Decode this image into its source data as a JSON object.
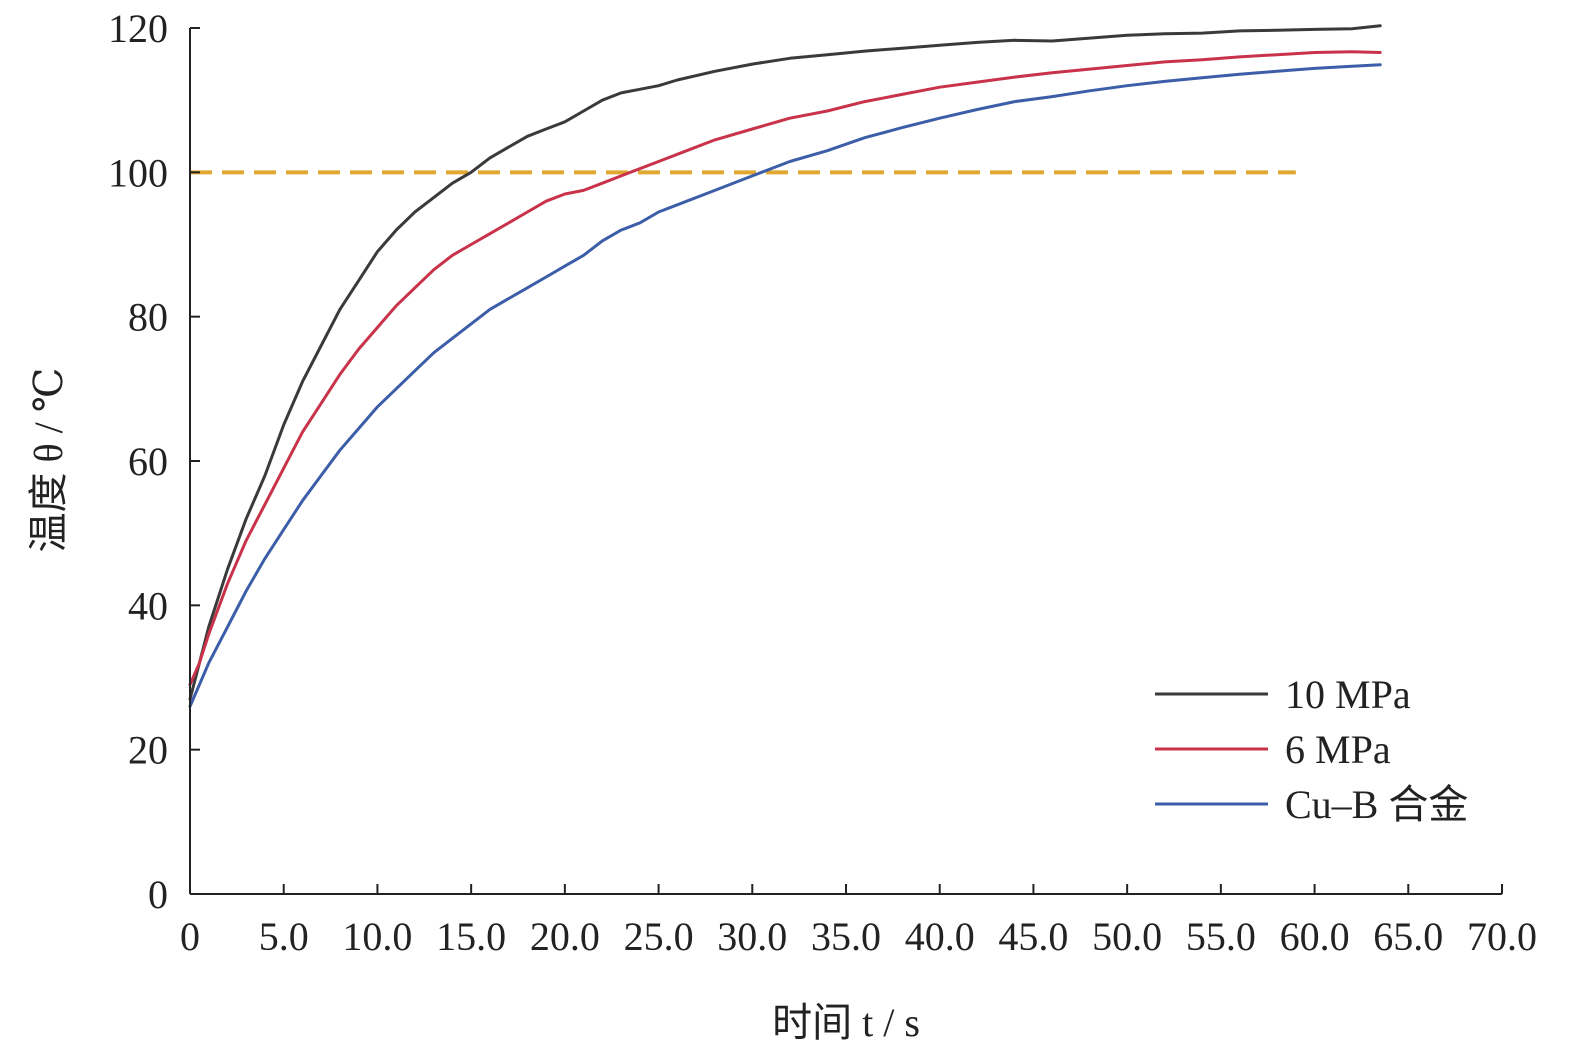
{
  "chart_data": {
    "type": "line",
    "xlabel": "时间 t / s",
    "ylabel": "温度 θ / ℃",
    "xlim": [
      0,
      70
    ],
    "ylim": [
      0,
      120
    ],
    "xticks": [
      0,
      5,
      10,
      15,
      20,
      25,
      30,
      35,
      40,
      45,
      50,
      55,
      60,
      65,
      70
    ],
    "xtick_labels": [
      "0",
      "5.0",
      "10.0",
      "15.0",
      "20.0",
      "25.0",
      "30.0",
      "35.0",
      "40.0",
      "45.0",
      "50.0",
      "55.0",
      "60.0",
      "65.0",
      "70.0"
    ],
    "yticks": [
      0,
      20,
      40,
      60,
      80,
      100,
      120
    ],
    "ytick_labels": [
      "0",
      "20",
      "40",
      "60",
      "80",
      "100",
      "120"
    ],
    "grid": false,
    "legend_position": "bottom-right",
    "series": [
      {
        "name": "10 MPa",
        "color": "#3a3a3a",
        "x": [
          0,
          0.5,
          1,
          2,
          3,
          4,
          5,
          6,
          7,
          8,
          9,
          10,
          11,
          12,
          13,
          14,
          15,
          16,
          17,
          18,
          19,
          20,
          21,
          22,
          23,
          24,
          25,
          26,
          28,
          30,
          32,
          34,
          36,
          38,
          40,
          42,
          44,
          46,
          48,
          50,
          52,
          54,
          56,
          58,
          60,
          62,
          63.5
        ],
        "values": [
          27,
          32,
          37,
          45,
          52,
          58,
          65,
          71,
          76,
          81,
          85,
          89,
          92,
          94.5,
          96.5,
          98.5,
          100,
          102,
          103.5,
          105,
          106,
          107,
          108.5,
          110,
          111,
          111.5,
          112,
          112.8,
          114,
          115,
          115.8,
          116.3,
          116.8,
          117.2,
          117.6,
          118,
          118.3,
          118.2,
          118.6,
          119,
          119.2,
          119.3,
          119.6,
          119.7,
          119.8,
          119.9,
          120.3
        ]
      },
      {
        "name": "6 MPa",
        "color": "#c8334a",
        "x": [
          0,
          0.5,
          1,
          2,
          3,
          4,
          5,
          6,
          7,
          8,
          9,
          10,
          11,
          12,
          13,
          14,
          15,
          16,
          17,
          18,
          19,
          20,
          21,
          22,
          23,
          24,
          25,
          26,
          28,
          30,
          32,
          34,
          36,
          38,
          40,
          42,
          44,
          46,
          48,
          50,
          52,
          54,
          56,
          58,
          60,
          62,
          63.5
        ],
        "values": [
          29,
          32,
          36,
          43,
          49,
          54,
          59,
          64,
          68,
          72,
          75.5,
          78.5,
          81.5,
          84,
          86.5,
          88.5,
          90,
          91.5,
          93,
          94.5,
          96,
          97,
          97.5,
          98.5,
          99.5,
          100.5,
          101.5,
          102.5,
          104.5,
          106,
          107.5,
          108.5,
          109.8,
          110.8,
          111.8,
          112.5,
          113.2,
          113.8,
          114.3,
          114.8,
          115.3,
          115.6,
          116,
          116.3,
          116.6,
          116.7,
          116.6
        ]
      },
      {
        "name": "Cu–B 合金",
        "color": "#3c5ea8",
        "x": [
          0,
          0.5,
          1,
          2,
          3,
          4,
          5,
          6,
          7,
          8,
          9,
          10,
          11,
          12,
          13,
          14,
          15,
          16,
          17,
          18,
          19,
          20,
          21,
          22,
          23,
          24,
          25,
          26,
          28,
          30,
          32,
          34,
          36,
          38,
          40,
          42,
          44,
          46,
          48,
          50,
          52,
          54,
          56,
          58,
          60,
          62,
          63.5
        ],
        "values": [
          26,
          29,
          32,
          37,
          42,
          46.5,
          50.5,
          54.5,
          58,
          61.5,
          64.5,
          67.5,
          70,
          72.5,
          75,
          77,
          79,
          81,
          82.5,
          84,
          85.5,
          87,
          88.5,
          90.5,
          92,
          93,
          94.5,
          95.5,
          97.5,
          99.5,
          101.5,
          103,
          104.8,
          106.2,
          107.5,
          108.7,
          109.8,
          110.5,
          111.3,
          112,
          112.6,
          113.1,
          113.6,
          114,
          114.4,
          114.7,
          114.9
        ]
      }
    ],
    "reference_line": {
      "y": 100,
      "x_range": [
        0,
        59
      ],
      "color": "#e0a830",
      "style": "dashed"
    }
  }
}
